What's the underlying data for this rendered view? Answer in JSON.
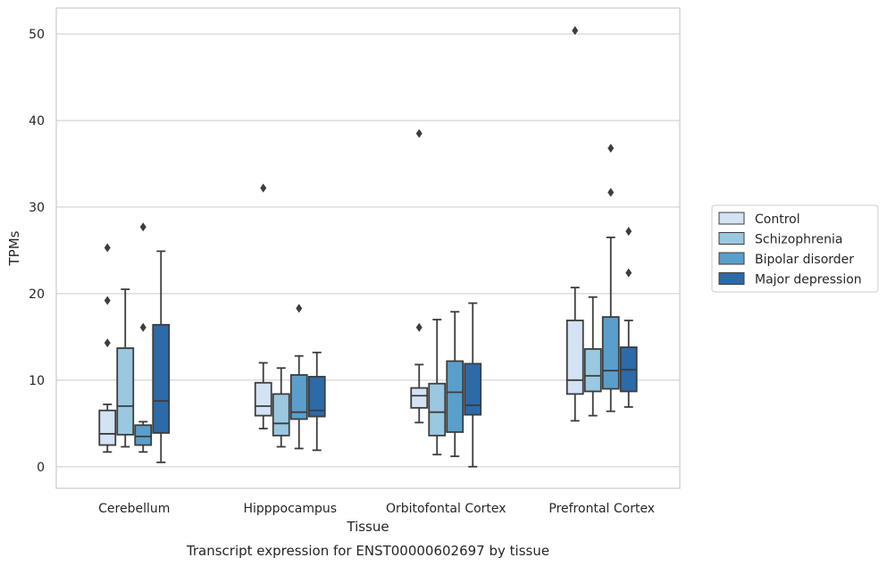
{
  "chart_data": {
    "type": "box",
    "xlabel": "Tissue",
    "ylabel": "TPMs",
    "caption": "Transcript expression for ENST00000602697 by tissue",
    "ylim": [
      -2.5,
      53
    ],
    "yticks": [
      0,
      10,
      20,
      30,
      40,
      50
    ],
    "grid": "horizontal",
    "legend_position": "right",
    "categories": [
      "Cerebellum",
      "Hipppocampus",
      "Orbitofontal Cortex",
      "Prefrontal Cortex"
    ],
    "series": [
      {
        "name": "Control",
        "color": "#d3e3f3",
        "boxes": [
          {
            "whisker_low": 1.7,
            "q1": 2.5,
            "median": 3.8,
            "q3": 6.5,
            "whisker_high": 7.2,
            "outliers": [
              14.3,
              19.2,
              25.3
            ]
          },
          {
            "whisker_low": 4.4,
            "q1": 5.9,
            "median": 7.0,
            "q3": 9.7,
            "whisker_high": 12.0,
            "outliers": [
              32.2
            ]
          },
          {
            "whisker_low": 5.1,
            "q1": 6.8,
            "median": 8.2,
            "q3": 9.1,
            "whisker_high": 11.8,
            "outliers": [
              16.1,
              38.5
            ]
          },
          {
            "whisker_low": 5.3,
            "q1": 8.4,
            "median": 10.0,
            "q3": 16.9,
            "whisker_high": 20.7,
            "outliers": [
              50.4
            ]
          }
        ]
      },
      {
        "name": "Schizophrenia",
        "color": "#9ac8e0",
        "boxes": [
          {
            "whisker_low": 2.3,
            "q1": 3.7,
            "median": 7.0,
            "q3": 13.7,
            "whisker_high": 20.5,
            "outliers": []
          },
          {
            "whisker_low": 2.3,
            "q1": 3.6,
            "median": 5.0,
            "q3": 8.4,
            "whisker_high": 11.4,
            "outliers": []
          },
          {
            "whisker_low": 1.4,
            "q1": 3.6,
            "median": 6.3,
            "q3": 9.6,
            "whisker_high": 17.0,
            "outliers": []
          },
          {
            "whisker_low": 5.9,
            "q1": 8.7,
            "median": 10.5,
            "q3": 13.6,
            "whisker_high": 19.6,
            "outliers": []
          }
        ]
      },
      {
        "name": "Bipolar disorder",
        "color": "#5a9fcc",
        "boxes": [
          {
            "whisker_low": 1.7,
            "q1": 2.5,
            "median": 3.5,
            "q3": 4.8,
            "whisker_high": 5.2,
            "outliers": [
              16.1,
              27.7
            ]
          },
          {
            "whisker_low": 2.1,
            "q1": 5.5,
            "median": 6.3,
            "q3": 10.6,
            "whisker_high": 12.8,
            "outliers": [
              18.3
            ]
          },
          {
            "whisker_low": 1.2,
            "q1": 4.0,
            "median": 8.6,
            "q3": 12.2,
            "whisker_high": 17.9,
            "outliers": []
          },
          {
            "whisker_low": 6.4,
            "q1": 9.0,
            "median": 11.1,
            "q3": 17.3,
            "whisker_high": 26.5,
            "outliers": [
              31.7,
              36.8
            ]
          }
        ]
      },
      {
        "name": "Major depression",
        "color": "#2c6aa8",
        "boxes": [
          {
            "whisker_low": 0.5,
            "q1": 3.9,
            "median": 7.6,
            "q3": 16.4,
            "whisker_high": 24.9,
            "outliers": []
          },
          {
            "whisker_low": 1.9,
            "q1": 5.8,
            "median": 6.5,
            "q3": 10.4,
            "whisker_high": 13.2,
            "outliers": []
          },
          {
            "whisker_low": 0.0,
            "q1": 6.0,
            "median": 7.1,
            "q3": 11.9,
            "whisker_high": 18.9,
            "outliers": []
          },
          {
            "whisker_low": 6.9,
            "q1": 8.7,
            "median": 11.2,
            "q3": 13.8,
            "whisker_high": 16.9,
            "outliers": [
              22.4,
              27.2
            ]
          }
        ]
      }
    ]
  }
}
